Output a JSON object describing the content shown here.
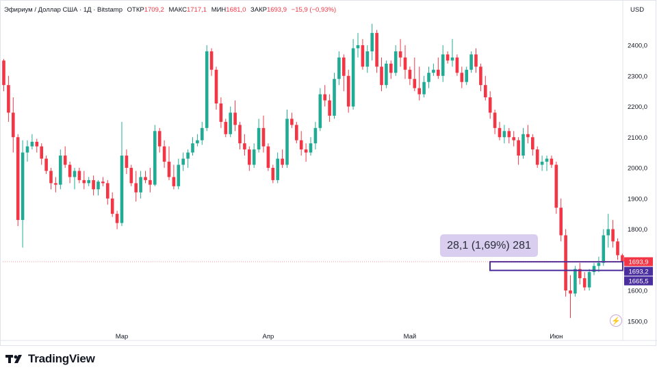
{
  "header": {
    "symbol": "Эфириум / Доллар США · 1Д · Bitstamp",
    "open_label": "ОТКР",
    "open": "1709,2",
    "high_label": "МАКС",
    "high": "1717,1",
    "low_label": "МИН",
    "low": "1681,0",
    "close_label": "ЗАКР",
    "close": "1693,9",
    "change": "−15,9 (−0,93%)",
    "currency": "USD"
  },
  "measure_label": "28,1 (1,69%) 281",
  "price_badges": [
    "1693,9",
    "1693,2",
    "1665,5"
  ],
  "brand": "TradingView",
  "colors": {
    "up": "#22ab94",
    "down": "#f23645",
    "measure": "#4a2e9e",
    "measure_fill": "#d9cdf0"
  },
  "chart_data": {
    "type": "candlestick",
    "y_ticks": [
      "2400,0",
      "2300,0",
      "2200,0",
      "2100,0",
      "2000,0",
      "1900,0",
      "1800,0",
      "1600,0",
      "1500,0"
    ],
    "y_tick_values": [
      2400,
      2300,
      2200,
      2100,
      2000,
      1900,
      1800,
      1600,
      1500
    ],
    "x_ticks": [
      {
        "label": "Мар",
        "index": 25
      },
      {
        "label": "Апр",
        "index": 56
      },
      {
        "label": "Май",
        "index": 86
      },
      {
        "label": "Июн",
        "index": 117
      }
    ],
    "ylim": [
      1485,
      2470
    ],
    "grid": false,
    "candles": [
      [
        2350,
        2355,
        2250,
        2270
      ],
      [
        2270,
        2300,
        2150,
        2180
      ],
      [
        2180,
        2230,
        2050,
        2100
      ],
      [
        2100,
        2110,
        1810,
        1830
      ],
      [
        1830,
        2090,
        1740,
        2050
      ],
      [
        2050,
        2090,
        2020,
        2070
      ],
      [
        2070,
        2110,
        2060,
        2085
      ],
      [
        2085,
        2095,
        2050,
        2070
      ],
      [
        2070,
        2080,
        2010,
        2030
      ],
      [
        2030,
        2040,
        1980,
        1990
      ],
      [
        1990,
        2000,
        1930,
        1950
      ],
      [
        1950,
        1970,
        1920,
        1945
      ],
      [
        1945,
        2060,
        1930,
        2040
      ],
      [
        2040,
        2070,
        2000,
        2010
      ],
      [
        2010,
        2020,
        1950,
        1970
      ],
      [
        1970,
        2000,
        1930,
        1990
      ],
      [
        1990,
        2000,
        1950,
        1960
      ],
      [
        1960,
        1990,
        1930,
        1950
      ],
      [
        1950,
        1970,
        1940,
        1960
      ],
      [
        1960,
        1975,
        1910,
        1930
      ],
      [
        1930,
        1960,
        1910,
        1955
      ],
      [
        1955,
        1970,
        1940,
        1950
      ],
      [
        1950,
        1960,
        1880,
        1900
      ],
      [
        1900,
        1920,
        1840,
        1850
      ],
      [
        1850,
        1860,
        1800,
        1820
      ],
      [
        1820,
        2150,
        1810,
        2040
      ],
      [
        2040,
        2060,
        1980,
        2000
      ],
      [
        2000,
        2010,
        1940,
        1950
      ],
      [
        1950,
        1990,
        1890,
        1920
      ],
      [
        1920,
        1990,
        1900,
        1970
      ],
      [
        1970,
        1990,
        1950,
        1960
      ],
      [
        1960,
        2000,
        1920,
        1945
      ],
      [
        1945,
        2140,
        1940,
        2120
      ],
      [
        2120,
        2130,
        2050,
        2070
      ],
      [
        2070,
        2090,
        2000,
        2020
      ],
      [
        2020,
        2070,
        1960,
        1970
      ],
      [
        1970,
        2010,
        1930,
        1940
      ],
      [
        1940,
        2030,
        1930,
        2010
      ],
      [
        2010,
        2050,
        1990,
        2030
      ],
      [
        2030,
        2060,
        2000,
        2050
      ],
      [
        2050,
        2100,
        2040,
        2080
      ],
      [
        2080,
        2110,
        2070,
        2090
      ],
      [
        2090,
        2150,
        2075,
        2130
      ],
      [
        2130,
        2400,
        2120,
        2380
      ],
      [
        2380,
        2390,
        2300,
        2320
      ],
      [
        2320,
        2330,
        2190,
        2210
      ],
      [
        2210,
        2230,
        2130,
        2150
      ],
      [
        2150,
        2160,
        2100,
        2110
      ],
      [
        2110,
        2200,
        2100,
        2180
      ],
      [
        2180,
        2220,
        2120,
        2140
      ],
      [
        2140,
        2150,
        2060,
        2080
      ],
      [
        2080,
        2110,
        2040,
        2060
      ],
      [
        2060,
        2070,
        1990,
        2010
      ],
      [
        2010,
        2080,
        2000,
        2060
      ],
      [
        2060,
        2160,
        2050,
        2130
      ],
      [
        2130,
        2170,
        2050,
        2070
      ],
      [
        2070,
        2080,
        1990,
        2000
      ],
      [
        2000,
        2010,
        1950,
        1960
      ],
      [
        1960,
        2050,
        1950,
        2030
      ],
      [
        2030,
        2060,
        2000,
        2010
      ],
      [
        2010,
        2190,
        2000,
        2160
      ],
      [
        2160,
        2180,
        2130,
        2140
      ],
      [
        2140,
        2150,
        2080,
        2090
      ],
      [
        2090,
        2120,
        2040,
        2060
      ],
      [
        2060,
        2080,
        2020,
        2050
      ],
      [
        2050,
        2100,
        2040,
        2080
      ],
      [
        2080,
        2150,
        2060,
        2130
      ],
      [
        2130,
        2260,
        2120,
        2240
      ],
      [
        2240,
        2270,
        2200,
        2220
      ],
      [
        2220,
        2240,
        2150,
        2170
      ],
      [
        2170,
        2310,
        2160,
        2290
      ],
      [
        2290,
        2380,
        2270,
        2360
      ],
      [
        2360,
        2370,
        2250,
        2300
      ],
      [
        2300,
        2320,
        2180,
        2200
      ],
      [
        2200,
        2420,
        2190,
        2390
      ],
      [
        2390,
        2440,
        2360,
        2400
      ],
      [
        2400,
        2420,
        2320,
        2330
      ],
      [
        2330,
        2400,
        2310,
        2380
      ],
      [
        2380,
        2470,
        2350,
        2440
      ],
      [
        2440,
        2450,
        2310,
        2330
      ],
      [
        2330,
        2360,
        2250,
        2270
      ],
      [
        2270,
        2350,
        2260,
        2340
      ],
      [
        2340,
        2350,
        2290,
        2310
      ],
      [
        2310,
        2400,
        2300,
        2380
      ],
      [
        2380,
        2420,
        2330,
        2360
      ],
      [
        2360,
        2400,
        2290,
        2320
      ],
      [
        2320,
        2330,
        2270,
        2290
      ],
      [
        2290,
        2360,
        2250,
        2260
      ],
      [
        2260,
        2330,
        2220,
        2240
      ],
      [
        2240,
        2300,
        2230,
        2280
      ],
      [
        2280,
        2330,
        2260,
        2310
      ],
      [
        2310,
        2340,
        2300,
        2320
      ],
      [
        2320,
        2360,
        2290,
        2300
      ],
      [
        2300,
        2400,
        2280,
        2370
      ],
      [
        2370,
        2380,
        2340,
        2350
      ],
      [
        2350,
        2420,
        2330,
        2360
      ],
      [
        2360,
        2370,
        2300,
        2310
      ],
      [
        2310,
        2330,
        2260,
        2280
      ],
      [
        2280,
        2330,
        2270,
        2320
      ],
      [
        2320,
        2380,
        2310,
        2370
      ],
      [
        2370,
        2390,
        2310,
        2330
      ],
      [
        2330,
        2340,
        2250,
        2270
      ],
      [
        2270,
        2300,
        2220,
        2230
      ],
      [
        2230,
        2250,
        2160,
        2180
      ],
      [
        2180,
        2190,
        2110,
        2130
      ],
      [
        2130,
        2150,
        2090,
        2100
      ],
      [
        2100,
        2140,
        2080,
        2120
      ],
      [
        2120,
        2130,
        2080,
        2100
      ],
      [
        2100,
        2120,
        2070,
        2090
      ],
      [
        2090,
        2100,
        2010,
        2040
      ],
      [
        2040,
        2130,
        2030,
        2110
      ],
      [
        2110,
        2140,
        2080,
        2100
      ],
      [
        2100,
        2110,
        2040,
        2060
      ],
      [
        2060,
        2070,
        2000,
        2010
      ],
      [
        2010,
        2040,
        1990,
        2020
      ],
      [
        2020,
        2040,
        1990,
        2030
      ],
      [
        2030,
        2040,
        2000,
        2010
      ],
      [
        2010,
        2020,
        1850,
        1870
      ],
      [
        1870,
        1900,
        1760,
        1780
      ],
      [
        1780,
        1800,
        1580,
        1600
      ],
      [
        1600,
        1650,
        1510,
        1590
      ],
      [
        1590,
        1680,
        1580,
        1670
      ],
      [
        1670,
        1690,
        1620,
        1640
      ],
      [
        1640,
        1660,
        1600,
        1610
      ],
      [
        1610,
        1670,
        1600,
        1660
      ],
      [
        1660,
        1690,
        1650,
        1680
      ],
      [
        1680,
        1710,
        1660,
        1690
      ],
      [
        1690,
        1800,
        1680,
        1780
      ],
      [
        1780,
        1850,
        1740,
        1800
      ],
      [
        1800,
        1830,
        1740,
        1760
      ],
      [
        1760,
        1770,
        1700,
        1715
      ],
      [
        1715,
        1720,
        1680,
        1694
      ]
    ],
    "measure_range": [
      1665.5,
      1693.6
    ]
  }
}
